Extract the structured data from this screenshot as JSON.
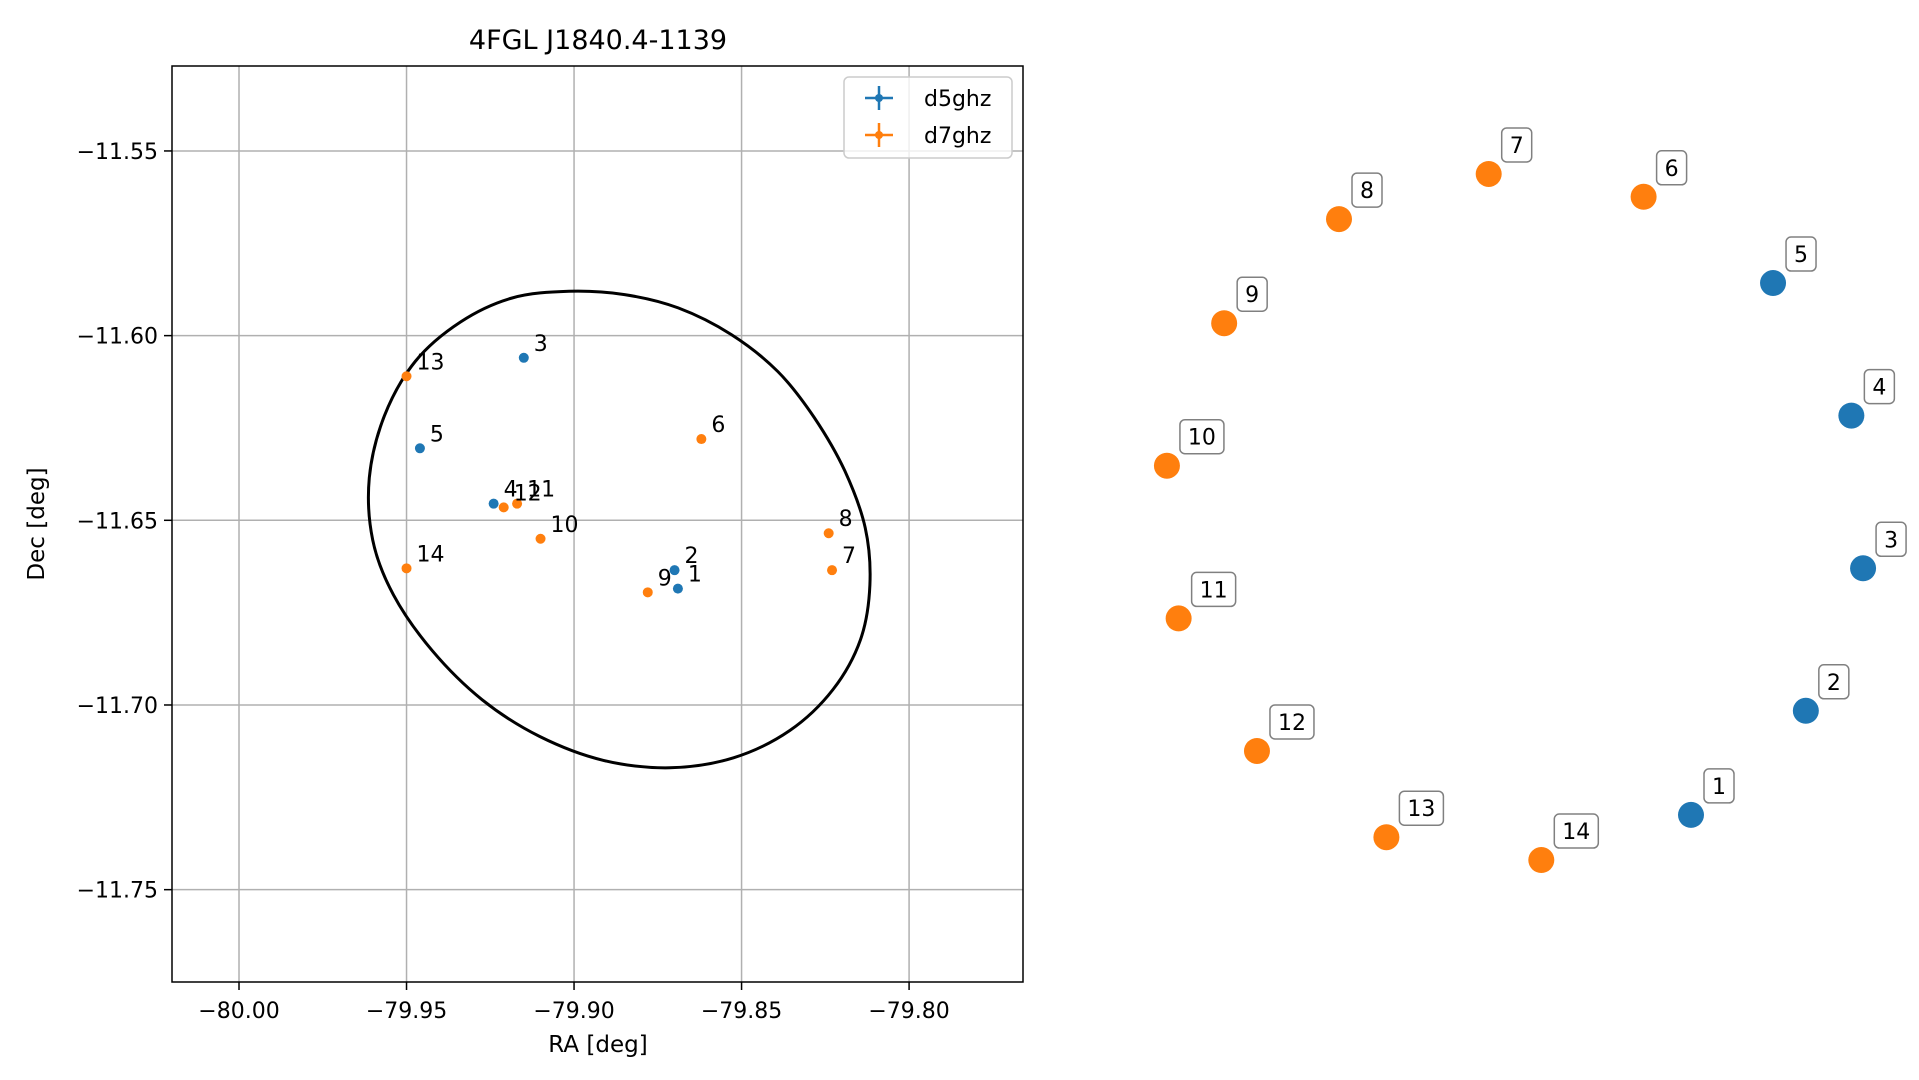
{
  "chart_data": {
    "type": "scatter",
    "title": "4FGL J1840.4-1139",
    "xlabel": "RA [deg]",
    "ylabel": "Dec [deg]",
    "xlim": [
      -80.02,
      -79.766
    ],
    "ylim": [
      -11.775,
      -11.527
    ],
    "xticks": [
      -80.0,
      -79.95,
      -79.9,
      -79.85,
      -79.8
    ],
    "xtick_labels": [
      "−80.00",
      "−79.95",
      "−79.90",
      "−79.85",
      "−79.80"
    ],
    "yticks": [
      -11.55,
      -11.6,
      -11.65,
      -11.7,
      -11.75
    ],
    "ytick_labels": [
      "−11.55",
      "−11.60",
      "−11.65",
      "−11.70",
      "−11.75"
    ],
    "grid": true,
    "legend_placement": "top-right",
    "series": [
      {
        "name": "d5ghz",
        "color": "#1f77b4",
        "points": [
          {
            "label": "1",
            "x": -79.869,
            "y": -11.6685
          },
          {
            "label": "2",
            "x": -79.87,
            "y": -11.6635
          },
          {
            "label": "3",
            "x": -79.915,
            "y": -11.606
          },
          {
            "label": "4",
            "x": -79.924,
            "y": -11.6455
          },
          {
            "label": "5",
            "x": -79.946,
            "y": -11.6305
          }
        ]
      },
      {
        "name": "d7ghz",
        "color": "#ff7f0e",
        "points": [
          {
            "label": "6",
            "x": -79.862,
            "y": -11.628
          },
          {
            "label": "7",
            "x": -79.823,
            "y": -11.6635
          },
          {
            "label": "8",
            "x": -79.824,
            "y": -11.6535
          },
          {
            "label": "9",
            "x": -79.878,
            "y": -11.6695
          },
          {
            "label": "10",
            "x": -79.91,
            "y": -11.655
          },
          {
            "label": "11",
            "x": -79.917,
            "y": -11.6455
          },
          {
            "label": "12",
            "x": -79.921,
            "y": -11.6465
          },
          {
            "label": "13",
            "x": -79.95,
            "y": -11.611
          },
          {
            "label": "14",
            "x": -79.95,
            "y": -11.663
          }
        ]
      }
    ],
    "ellipse": {
      "color": "#000000",
      "points": [
        [
          -79.9015,
          -11.588
        ],
        [
          -79.8849,
          -11.5889
        ],
        [
          -79.8689,
          -11.5925
        ],
        [
          -79.8531,
          -11.5997
        ],
        [
          -79.8392,
          -11.6097
        ],
        [
          -79.8283,
          -11.6222
        ],
        [
          -79.8192,
          -11.6366
        ],
        [
          -79.8131,
          -11.652
        ],
        [
          -79.8117,
          -11.6675
        ],
        [
          -79.8145,
          -11.6823
        ],
        [
          -79.8227,
          -11.6958
        ],
        [
          -79.8356,
          -11.7069
        ],
        [
          -79.8524,
          -11.7143
        ],
        [
          -79.8714,
          -11.717
        ],
        [
          -79.8912,
          -11.715
        ],
        [
          -79.9103,
          -11.7085
        ],
        [
          -79.9274,
          -11.6986
        ],
        [
          -79.9423,
          -11.6853
        ],
        [
          -79.9539,
          -11.6702
        ],
        [
          -79.9601,
          -11.6553
        ],
        [
          -79.9611,
          -11.6385
        ],
        [
          -79.9566,
          -11.6217
        ],
        [
          -79.9474,
          -11.607
        ],
        [
          -79.9339,
          -11.5963
        ],
        [
          -79.9185,
          -11.5898
        ],
        [
          -79.9015,
          -11.588
        ]
      ]
    }
  },
  "key_panel": {
    "points": [
      {
        "label": "1",
        "series": "d5ghz",
        "color": "#1f77b4"
      },
      {
        "label": "2",
        "series": "d5ghz",
        "color": "#1f77b4"
      },
      {
        "label": "3",
        "series": "d5ghz",
        "color": "#1f77b4"
      },
      {
        "label": "4",
        "series": "d5ghz",
        "color": "#1f77b4"
      },
      {
        "label": "5",
        "series": "d5ghz",
        "color": "#1f77b4"
      },
      {
        "label": "6",
        "series": "d7ghz",
        "color": "#ff7f0e"
      },
      {
        "label": "7",
        "series": "d7ghz",
        "color": "#ff7f0e"
      },
      {
        "label": "8",
        "series": "d7ghz",
        "color": "#ff7f0e"
      },
      {
        "label": "9",
        "series": "d7ghz",
        "color": "#ff7f0e"
      },
      {
        "label": "10",
        "series": "d7ghz",
        "color": "#ff7f0e"
      },
      {
        "label": "11",
        "series": "d7ghz",
        "color": "#ff7f0e"
      },
      {
        "label": "12",
        "series": "d7ghz",
        "color": "#ff7f0e"
      },
      {
        "label": "13",
        "series": "d7ghz",
        "color": "#ff7f0e"
      },
      {
        "label": "14",
        "series": "d7ghz",
        "color": "#ff7f0e"
      }
    ]
  }
}
